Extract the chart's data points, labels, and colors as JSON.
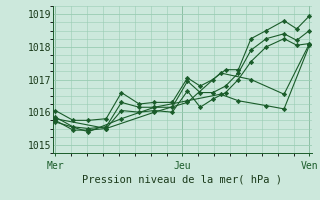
{
  "title": "Pression niveau de la mer( hPa )",
  "bg_color": "#cce8dc",
  "grid_color": "#99ccb3",
  "line_color": "#1a5c2a",
  "ylim": [
    1014.75,
    1019.25
  ],
  "yticks": [
    1015,
    1016,
    1017,
    1018,
    1019
  ],
  "xtick_labels": [
    "Mer",
    "Jeu",
    "Ven"
  ],
  "xtick_positions": [
    0.0,
    0.5,
    1.0
  ],
  "series": [
    {
      "x": [
        0.0,
        0.07,
        0.13,
        0.2,
        0.26,
        0.33,
        0.39,
        0.46,
        0.52,
        0.57,
        0.62,
        0.67,
        0.72,
        0.77,
        0.83,
        0.9,
        0.95,
        1.0
      ],
      "y": [
        1016.05,
        1015.75,
        1015.75,
        1015.8,
        1016.6,
        1016.25,
        1016.3,
        1016.3,
        1017.05,
        1016.8,
        1017.0,
        1017.3,
        1017.3,
        1018.25,
        1018.5,
        1018.8,
        1018.55,
        1018.95
      ]
    },
    {
      "x": [
        0.0,
        0.07,
        0.13,
        0.2,
        0.26,
        0.33,
        0.39,
        0.46,
        0.52,
        0.57,
        0.62,
        0.67,
        0.72,
        0.77,
        0.83,
        0.9,
        0.95,
        1.0
      ],
      "y": [
        1015.85,
        1015.55,
        1015.5,
        1015.55,
        1016.3,
        1016.15,
        1016.15,
        1016.15,
        1016.95,
        1016.6,
        1016.6,
        1016.8,
        1017.2,
        1017.9,
        1018.25,
        1018.4,
        1018.2,
        1018.5
      ]
    },
    {
      "x": [
        0.0,
        0.07,
        0.13,
        0.2,
        0.26,
        0.33,
        0.39,
        0.46,
        0.52,
        0.57,
        0.62,
        0.67,
        0.72,
        0.77,
        0.83,
        0.9,
        0.95,
        1.0
      ],
      "y": [
        1015.75,
        1015.45,
        1015.45,
        1015.5,
        1016.05,
        1016.0,
        1016.05,
        1016.0,
        1016.65,
        1016.15,
        1016.4,
        1016.6,
        1017.0,
        1017.55,
        1018.0,
        1018.25,
        1018.05,
        1018.1
      ]
    },
    {
      "x": [
        0.0,
        0.13,
        0.26,
        0.39,
        0.52,
        0.65,
        0.72,
        0.83,
        0.9,
        1.0
      ],
      "y": [
        1015.7,
        1015.4,
        1015.8,
        1016.15,
        1016.35,
        1016.55,
        1016.35,
        1016.2,
        1016.1,
        1018.05
      ]
    },
    {
      "x": [
        0.0,
        0.2,
        0.39,
        0.52,
        0.65,
        0.77,
        0.9,
        1.0
      ],
      "y": [
        1015.8,
        1015.5,
        1016.0,
        1016.3,
        1017.2,
        1017.0,
        1016.55,
        1018.1
      ]
    }
  ]
}
